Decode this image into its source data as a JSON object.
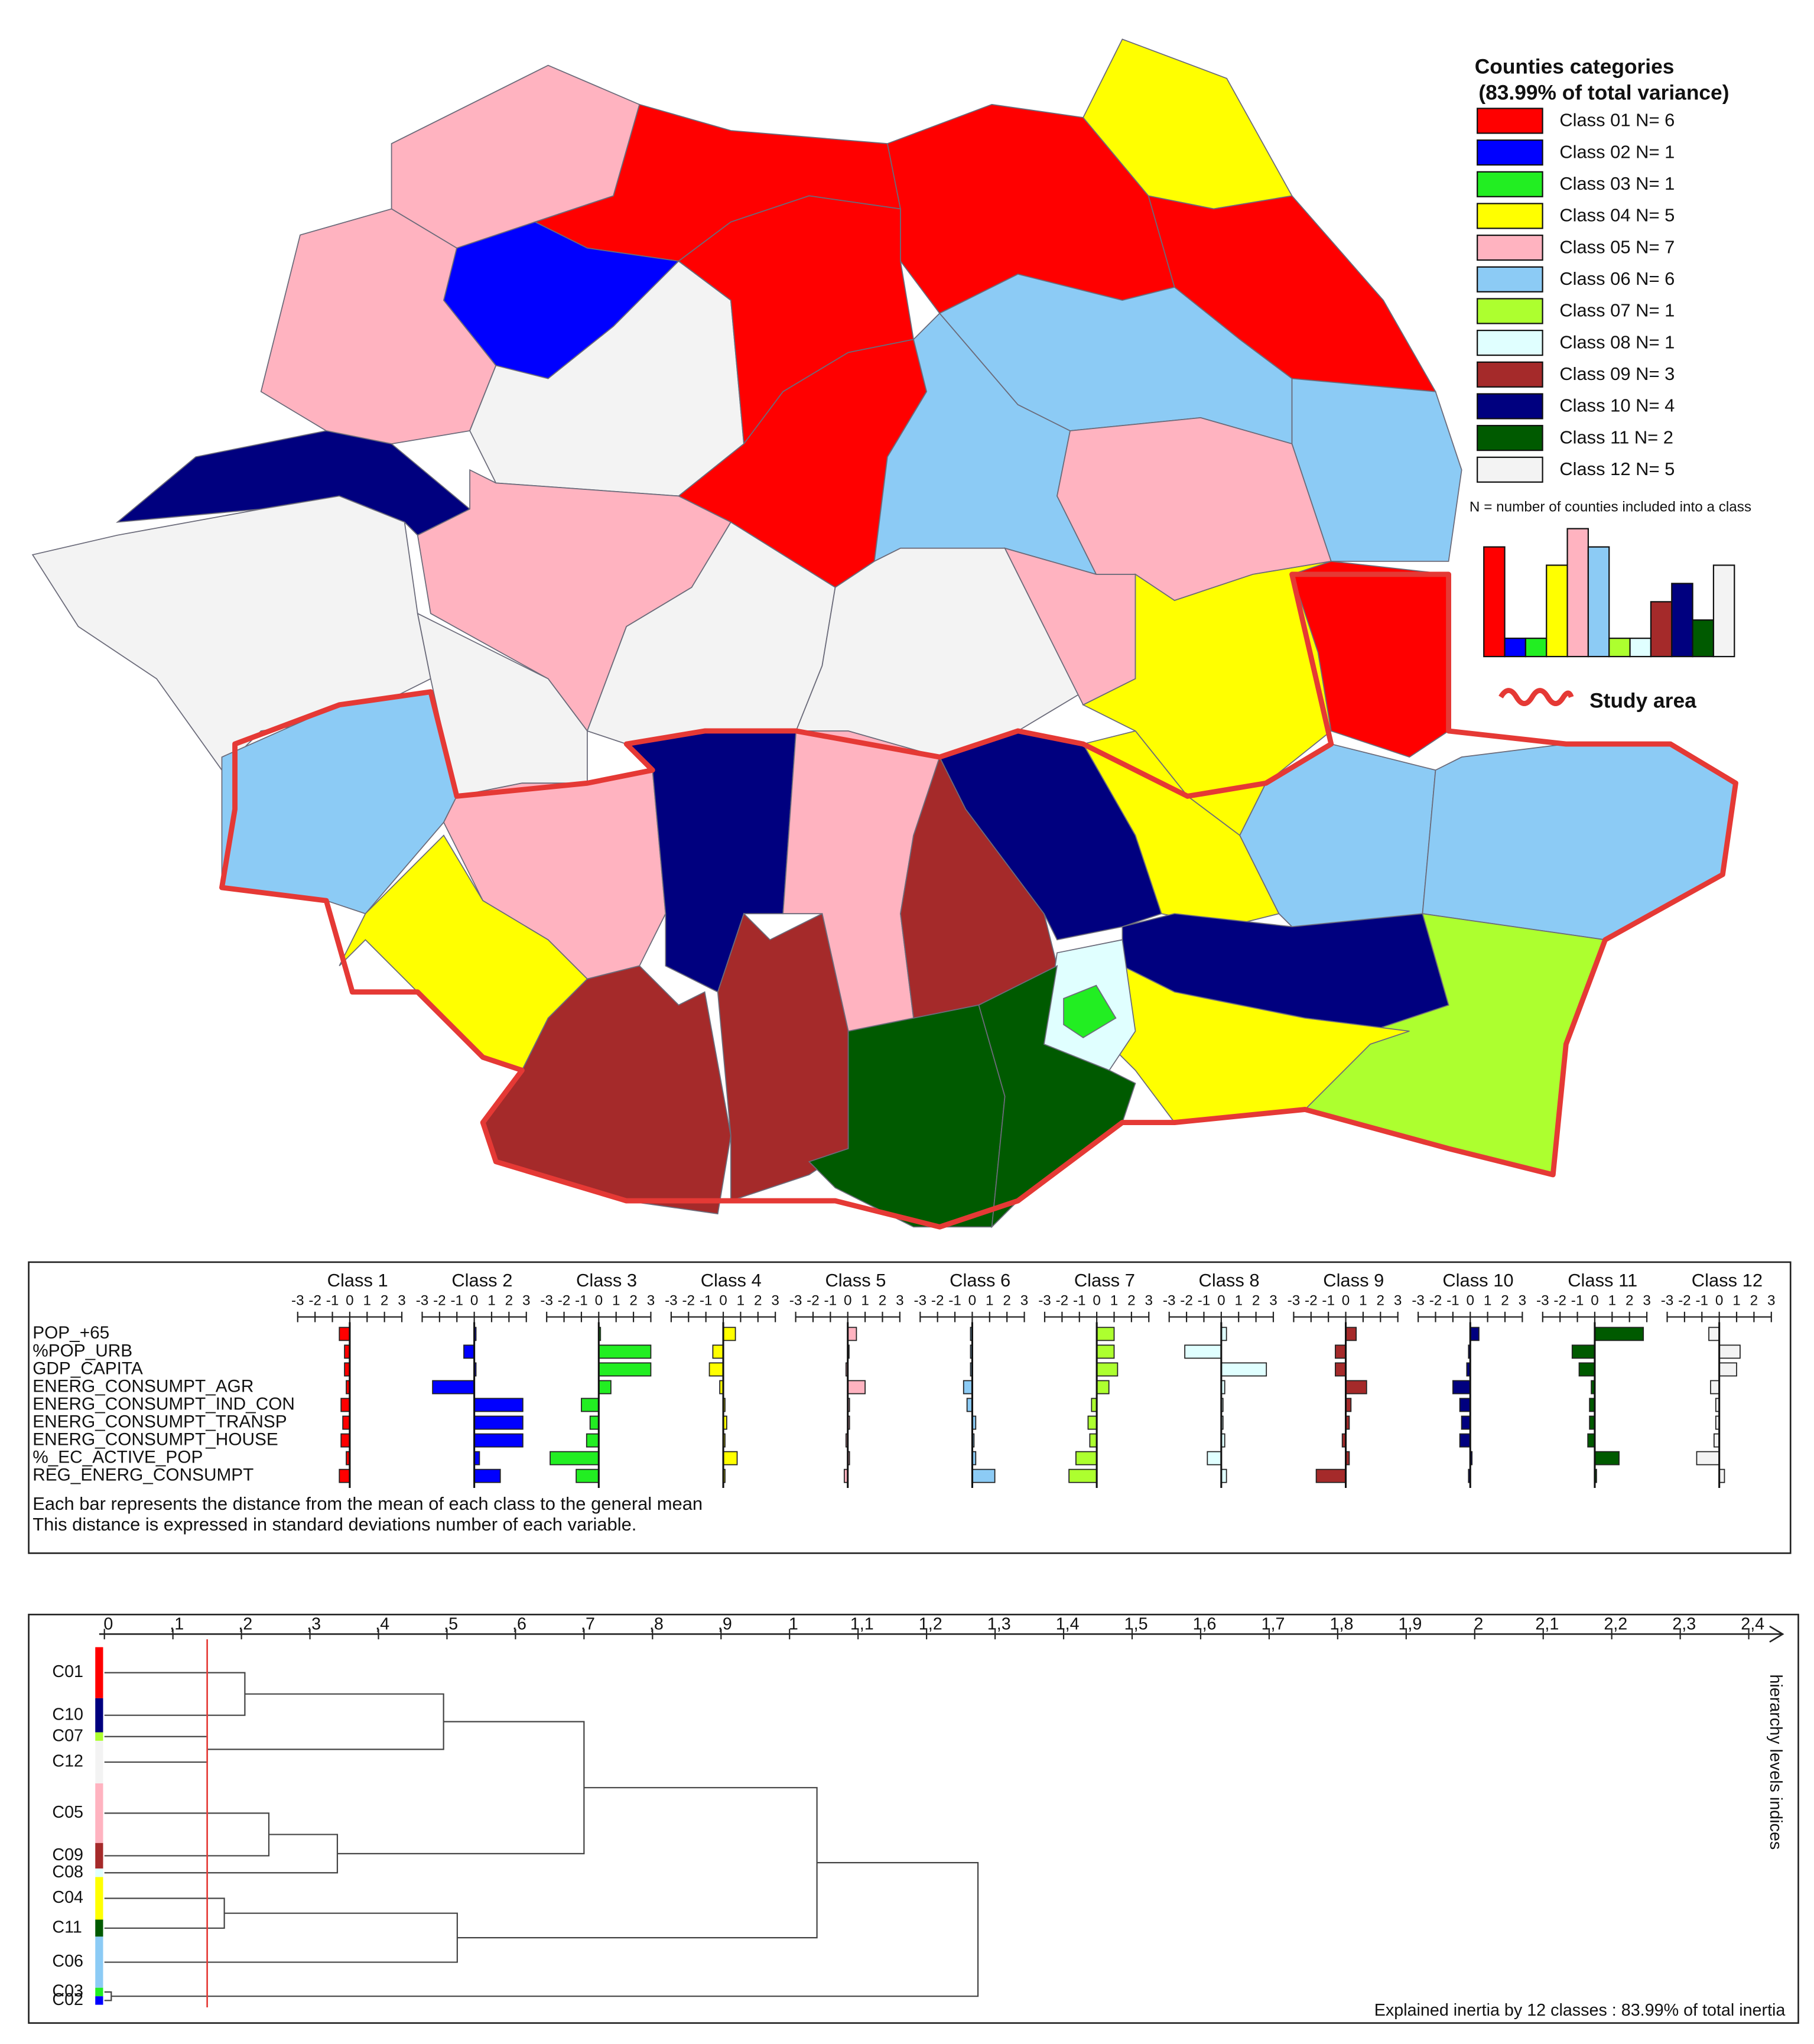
{
  "map": {
    "legend": {
      "title": "Counties categories",
      "subtitle": "(83.99% of total variance)",
      "classes": [
        {
          "label": "Class 01 N= 6",
          "n": 6,
          "color": "#ff0000"
        },
        {
          "label": "Class 02 N= 1",
          "n": 1,
          "color": "#0000ff"
        },
        {
          "label": "Class 03 N= 1",
          "n": 1,
          "color": "#22ee22"
        },
        {
          "label": "Class 04 N= 5",
          "n": 5,
          "color": "#ffff00"
        },
        {
          "label": "Class 05 N= 7",
          "n": 7,
          "color": "#ffb3c0"
        },
        {
          "label": "Class 06 N= 6",
          "n": 6,
          "color": "#8ccbf5"
        },
        {
          "label": "Class 07 N= 1",
          "n": 1,
          "color": "#adff2f"
        },
        {
          "label": "Class 08 N= 1",
          "n": 1,
          "color": "#e0ffff"
        },
        {
          "label": "Class 09 N= 3",
          "n": 3,
          "color": "#a52a2a"
        },
        {
          "label": "Class 10 N= 4",
          "n": 4,
          "color": "#00007f"
        },
        {
          "label": "Class 11 N= 2",
          "n": 2,
          "color": "#005a00"
        },
        {
          "label": "Class 12 N= 5",
          "n": 5,
          "color": "#f3f3f3"
        }
      ],
      "note": "N = number of counties included into a class"
    },
    "study_area": "Study area"
  },
  "profile": {
    "classes": [
      "Class 1",
      "Class 2",
      "Class 3",
      "Class 4",
      "Class 5",
      "Class 6",
      "Class 7",
      "Class 8",
      "Class 9",
      "Class 10",
      "Class 11",
      "Class 12"
    ],
    "variables": [
      "POP_+65",
      "%POP_URB",
      "GDP_CAPITA",
      "ENERG_CONSUMPT_AGR",
      "ENERG_CONSUMPT_IND_CON",
      "ENERG_CONSUMPT_TRANSP",
      "ENERG_CONSUMPT_HOUSE",
      "%_EC_ACTIVE_POP",
      "REG_ENERG_CONSUMPT"
    ],
    "xlim": [
      -3,
      3
    ],
    "xticks": [
      -3,
      -2,
      -1,
      0,
      1,
      2,
      3
    ],
    "values": [
      [
        -0.6,
        -0.3,
        -0.3,
        -0.2,
        -0.5,
        -0.4,
        -0.5,
        -0.2,
        -0.6
      ],
      [
        0.1,
        -0.6,
        0.1,
        -2.4,
        2.8,
        2.8,
        2.8,
        0.3,
        1.5
      ],
      [
        0.1,
        3.0,
        3.0,
        0.7,
        -1.0,
        -0.5,
        -0.7,
        -2.8,
        -1.3
      ],
      [
        0.7,
        -0.6,
        -0.8,
        -0.2,
        0.1,
        0.2,
        0.1,
        0.8,
        0.1
      ],
      [
        0.5,
        0.0,
        -0.1,
        1.0,
        0.1,
        0.1,
        -0.1,
        0.1,
        -0.2
      ],
      [
        -0.1,
        -0.1,
        -0.1,
        -0.5,
        -0.3,
        0.2,
        0.1,
        0.2,
        1.3
      ],
      [
        1.0,
        1.0,
        1.2,
        0.7,
        -0.3,
        -0.5,
        -0.4,
        -1.2,
        -1.6
      ],
      [
        0.3,
        -2.1,
        2.6,
        0.2,
        0.1,
        0.1,
        0.2,
        -0.8,
        0.3
      ],
      [
        0.6,
        -0.6,
        -0.6,
        1.2,
        0.3,
        0.2,
        -0.2,
        0.2,
        -1.7
      ],
      [
        0.5,
        -0.1,
        -0.2,
        -1.0,
        -0.6,
        -0.5,
        -0.6,
        0.1,
        -0.1
      ],
      [
        2.8,
        -1.3,
        -0.9,
        -0.2,
        -0.3,
        -0.3,
        -0.4,
        1.4,
        0.1
      ],
      [
        -0.6,
        1.2,
        1.0,
        -0.5,
        -0.2,
        -0.2,
        -0.3,
        -1.3,
        0.3
      ]
    ],
    "caption": [
      "Each bar represents the distance from the mean of each class to the general mean",
      "This distance is expressed in standard deviations number of each variable."
    ]
  },
  "dendrogram": {
    "xlim": [
      0,
      2.4
    ],
    "xticks": [
      0,
      {
        "value": 0.1,
        "label": ",1"
      },
      {
        "value": 0.2,
        "label": ",2"
      },
      {
        "value": 0.3,
        "label": ",3"
      },
      {
        "value": 0.4,
        "label": ",4"
      },
      {
        "value": 0.5,
        "label": ",5"
      },
      {
        "value": 0.6,
        "label": ",6"
      },
      {
        "value": 0.7,
        "label": ",7"
      },
      {
        "value": 0.8,
        "label": ",8"
      },
      {
        "value": 0.9,
        "label": ",9"
      },
      1,
      {
        "value": 1.1,
        "label": "1,1"
      },
      {
        "value": 1.2,
        "label": "1,2"
      },
      {
        "value": 1.3,
        "label": "1,3"
      },
      {
        "value": 1.4,
        "label": "1,4"
      },
      {
        "value": 1.5,
        "label": "1,5"
      },
      {
        "value": 1.6,
        "label": "1,6"
      },
      {
        "value": 1.7,
        "label": "1,7"
      },
      {
        "value": 1.8,
        "label": "1,8"
      },
      {
        "value": 1.9,
        "label": "1,9"
      },
      2,
      {
        "value": 2.1,
        "label": "2,1"
      },
      {
        "value": 2.2,
        "label": "2,2"
      },
      {
        "value": 2.3,
        "label": "2,3"
      },
      {
        "value": 2.4,
        "label": "2,4"
      }
    ],
    "leaves": [
      {
        "label": "C01",
        "class": 0
      },
      {
        "label": "C10",
        "class": 9
      },
      {
        "label": "C07",
        "class": 6
      },
      {
        "label": "C12",
        "class": 11
      },
      {
        "label": "C05",
        "class": 4
      },
      {
        "label": "C09",
        "class": 8
      },
      {
        "label": "C08",
        "class": 7
      },
      {
        "label": "C04",
        "class": 3
      },
      {
        "label": "C11",
        "class": 10
      },
      {
        "label": "C06",
        "class": 5
      },
      {
        "label": "C03",
        "class": 2
      },
      {
        "label": "C02",
        "class": 1
      }
    ],
    "merges": [
      {
        "left": 2,
        "right": 3,
        "height": 0.15
      },
      {
        "left": 0,
        "right": 1,
        "height": 0.205
      },
      {
        "left": 13,
        "right": 12,
        "height": 0.495
      },
      {
        "left": 4,
        "right": 5,
        "height": 0.24
      },
      {
        "left": 15,
        "right": 6,
        "height": 0.34
      },
      {
        "left": 14,
        "right": 16,
        "height": 0.7
      },
      {
        "left": 7,
        "right": 8,
        "height": 0.175
      },
      {
        "left": 18,
        "right": 9,
        "height": 0.515
      },
      {
        "left": 17,
        "right": 19,
        "height": 1.04
      },
      {
        "left": 10,
        "right": 11,
        "height": 0.01
      },
      {
        "left": 20,
        "right": 21,
        "height": 1.275
      }
    ],
    "cut": 0.15,
    "axis_label": "hierarchy levels indices",
    "footer": "Explained inertia by 12 classes : 83.99% of total inertia"
  }
}
